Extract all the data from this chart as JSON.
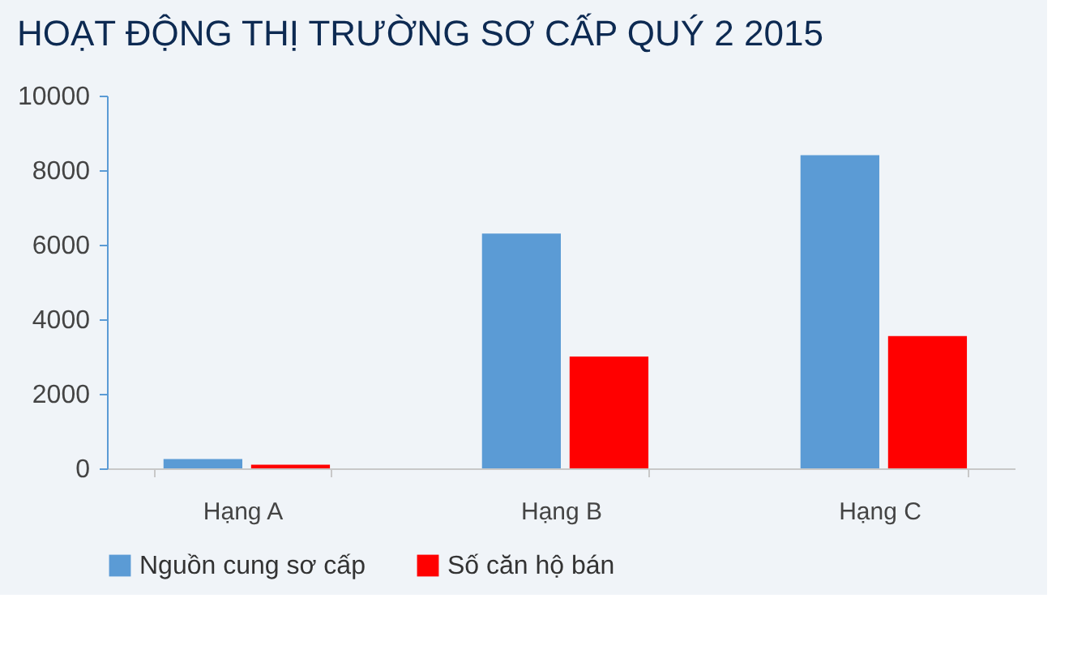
{
  "chart_data": {
    "type": "bar",
    "title": "HOẠT ĐỘNG THỊ TRƯỜNG SƠ CẤP QUÝ 2 2015",
    "categories": [
      "Hạng A",
      "Hạng B",
      "Hạng C"
    ],
    "series": [
      {
        "name": "Nguồn cung sơ cấp",
        "color": "#5b9bd5",
        "values": [
          250,
          6300,
          8400
        ]
      },
      {
        "name": "Số căn hộ bán",
        "color": "#ff0000",
        "values": [
          100,
          3000,
          3550
        ]
      }
    ],
    "ylim": [
      0,
      10000
    ],
    "yticks": [
      0,
      2000,
      4000,
      6000,
      8000,
      10000
    ],
    "grid": false,
    "legend": "bottom"
  }
}
